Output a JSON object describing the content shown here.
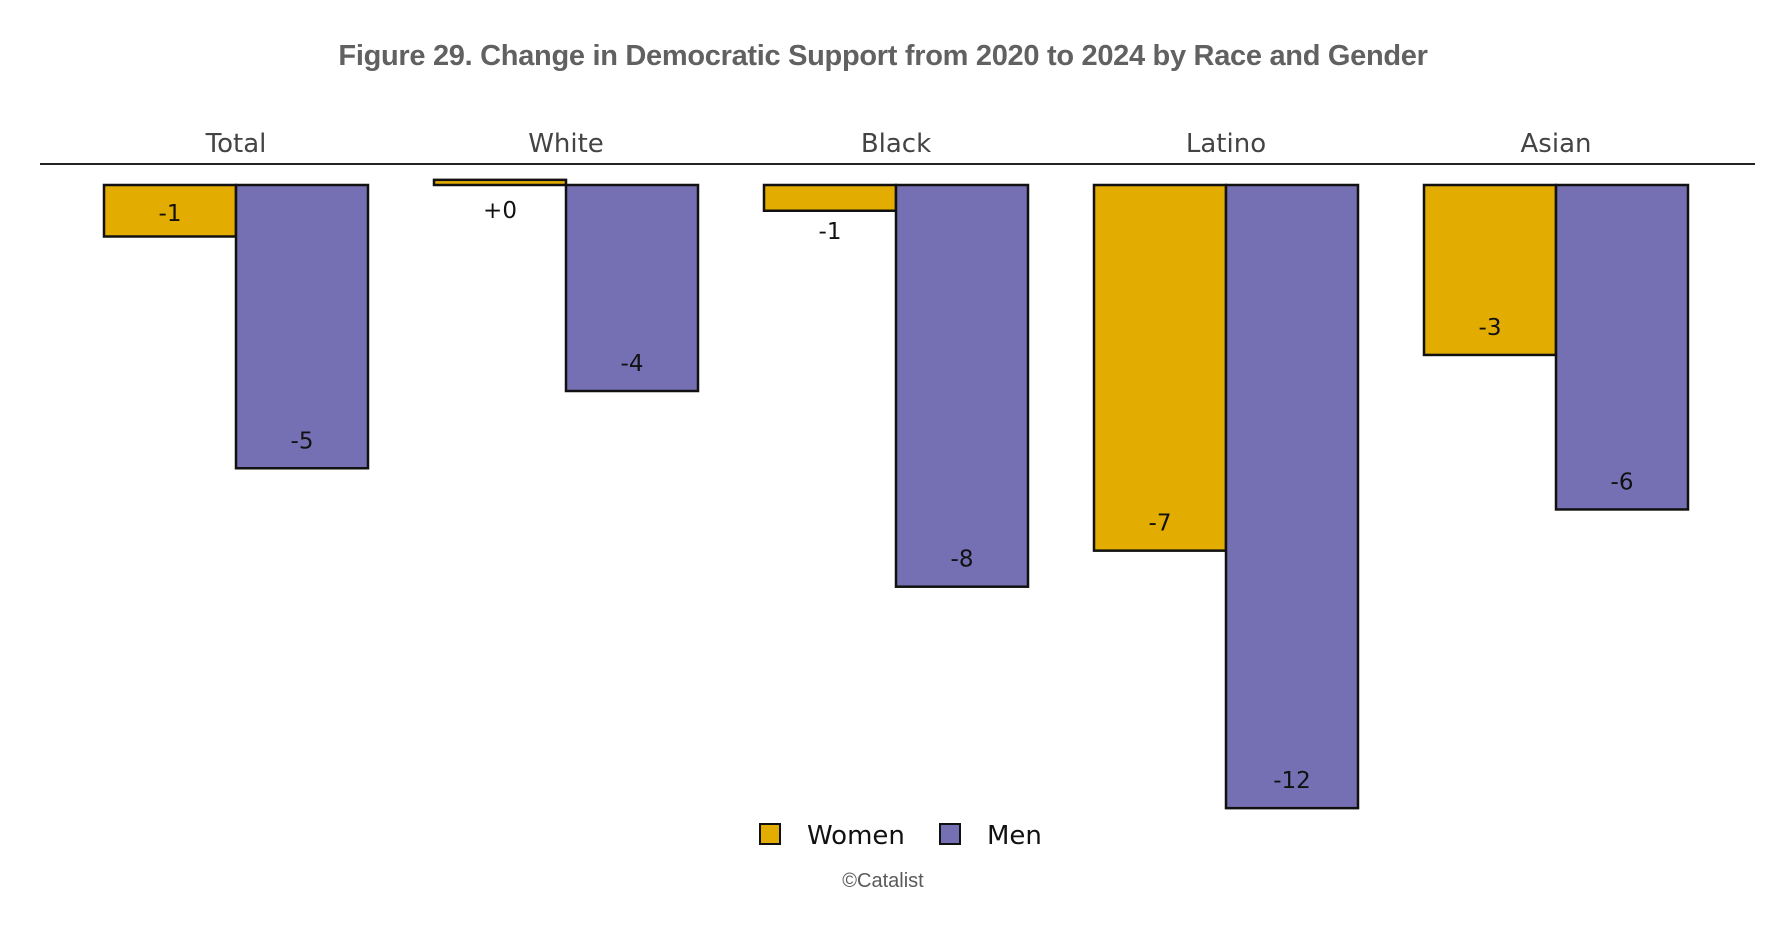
{
  "title": "Figure 29. Change in Democratic Support from 2020 to 2024 by Race and Gender",
  "copyright": "©Catalist",
  "colors": {
    "women": "#E3AC00",
    "men": "#7570B3",
    "outline": "#111111",
    "axis": "#222222"
  },
  "chart_data": {
    "type": "bar",
    "layout": "faceted",
    "title": "Figure 29. Change in Democratic Support from 2020 to 2024 by Race and Gender",
    "categories": [
      "Total",
      "White",
      "Black",
      "Latino",
      "Asian"
    ],
    "series": [
      {
        "name": "Women",
        "values": [
          -1.0,
          0.1,
          -0.5,
          -7.1,
          -3.3
        ],
        "labels": [
          "-1",
          "+0",
          "-1",
          "-7",
          "-3"
        ]
      },
      {
        "name": "Men",
        "values": [
          -5.5,
          -4.0,
          -7.8,
          -12.1,
          -6.3
        ],
        "labels": [
          "-5",
          "-4",
          "-8",
          "-12",
          "-6"
        ]
      }
    ],
    "ylim": [
      -12.1,
      0.4
    ],
    "grid": false,
    "legend": "bottom-center"
  }
}
